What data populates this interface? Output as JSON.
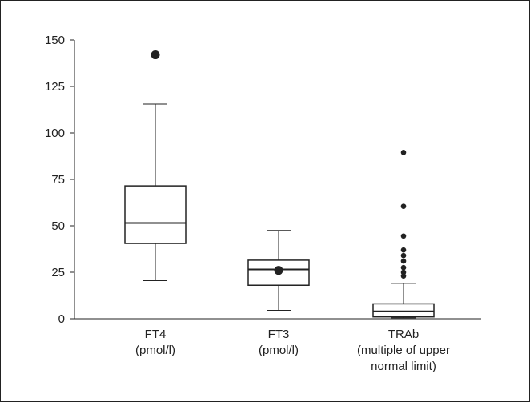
{
  "chart_data": {
    "type": "boxplot",
    "title": "",
    "xlabel": "",
    "ylabel": "",
    "ylim": [
      0,
      150
    ],
    "yticks": [
      0,
      25,
      50,
      75,
      100,
      125,
      150
    ],
    "grid": false,
    "categories": [
      {
        "line1": "FT4",
        "line2": "(pmol/l)",
        "line3": ""
      },
      {
        "line1": "FT3",
        "line2": "(pmol/l)",
        "line3": ""
      },
      {
        "line1": "TRAb",
        "line2": "(multiple of upper",
        "line3": "normal limit)"
      }
    ],
    "boxes": [
      {
        "whisker_low": 20.5,
        "q1": 40.5,
        "median": 51.5,
        "q3": 71.5,
        "whisker_high": 115.5,
        "mean": null,
        "outliers": [
          142
        ],
        "outlier_size": "large"
      },
      {
        "whisker_low": 4.5,
        "q1": 18.0,
        "median": 26.5,
        "q3": 31.5,
        "whisker_high": 47.5,
        "mean": 26.0,
        "outliers": [],
        "outlier_size": "small"
      },
      {
        "whisker_low": 0.5,
        "q1": 1.0,
        "median": 4.0,
        "q3": 8.0,
        "whisker_high": 19.0,
        "mean": null,
        "outliers": [
          23,
          25,
          27.5,
          31,
          34,
          37,
          44.5,
          60.5,
          89.5
        ],
        "outlier_size": "small"
      }
    ],
    "colors": {
      "stroke": "#222222",
      "box_fill": "#ffffff"
    }
  }
}
